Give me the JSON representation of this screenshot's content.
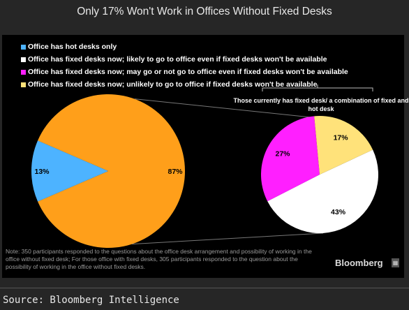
{
  "title": "Only 17% Won't Work in Offices Without Fixed Desks",
  "colors": {
    "hot_desk": "#4db3ff",
    "likely": "#ffffff",
    "may": "#ff1fff",
    "unlikely": "#ffe27a",
    "fixed_desks": "#ff9f1a"
  },
  "legend": [
    {
      "label": "Office has hot desks only",
      "color": "#4db3ff"
    },
    {
      "label": "Office has fixed desks now; likely to go to office even if fixed desks won't be available",
      "color": "#ffffff"
    },
    {
      "label": "Office has fixed desks now; may go or not go to office even if fixed desks won't be available",
      "color": "#ff1fff"
    },
    {
      "label": "Office has fixed desks now; unlikely to go to office if fixed desks won't be available",
      "color": "#ffe27a"
    }
  ],
  "sub_chart_label": "Those currently has fixed desk/ a combination of fixed and hot desk",
  "chart_data": [
    {
      "type": "pie",
      "title": "",
      "slices": [
        {
          "value": 13,
          "label": "13%",
          "color": "#4db3ff"
        },
        {
          "value": 87,
          "label": "87%",
          "color": "#ff9f1a"
        }
      ]
    },
    {
      "type": "pie",
      "title": "Those currently has fixed desk/ a combination of fixed and hot desk",
      "slices": [
        {
          "value": 43,
          "label": "43%",
          "color": "#ffffff"
        },
        {
          "value": 27,
          "label": "27%",
          "color": "#ff1fff"
        },
        {
          "value": 17,
          "label": "17%",
          "color": "#ffe27a"
        }
      ]
    }
  ],
  "note": "Note: 350 participants responded to the questions about the office desk arrangement and possibility of working in the office without fixed desk; For those office with fixed desks, 305 participants responded to the question about the possibility of working in the office without fixed desks.",
  "brand": "Bloomberg",
  "source": "Source: Bloomberg Intelligence"
}
